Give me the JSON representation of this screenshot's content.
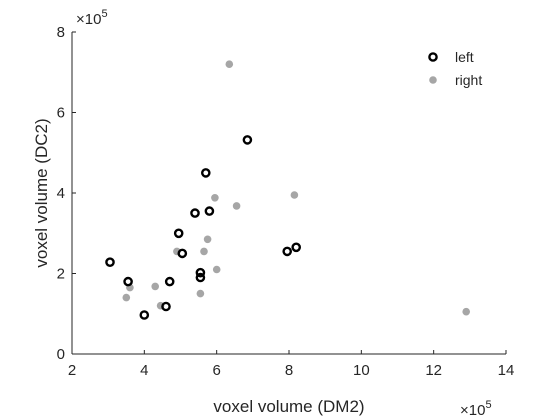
{
  "chart_data": {
    "type": "scatter",
    "xlabel": "voxel volume (DM2)",
    "ylabel": "voxel volume (DC2)",
    "x_exponent_label": "×10",
    "x_exponent": "5",
    "y_exponent_label": "×10",
    "y_exponent": "5",
    "xlim": [
      2,
      14
    ],
    "ylim": [
      0,
      8
    ],
    "xticks": [
      "2",
      "4",
      "6",
      "8",
      "10",
      "12",
      "14"
    ],
    "yticks": [
      "0",
      "2",
      "4",
      "6",
      "8"
    ],
    "xtick_values": [
      2,
      4,
      6,
      8,
      10,
      12,
      14
    ],
    "ytick_values": [
      0,
      2,
      4,
      6,
      8
    ],
    "scale_note": "values in units of 1e5",
    "grid": false,
    "legend_position": "top-right",
    "series": [
      {
        "name": "left",
        "marker": "open-circle",
        "color": "#000000",
        "points": [
          [
            3.05,
            2.28
          ],
          [
            3.55,
            1.8
          ],
          [
            4.0,
            0.97
          ],
          [
            4.6,
            1.18
          ],
          [
            4.7,
            1.8
          ],
          [
            4.95,
            3.0
          ],
          [
            5.05,
            2.5
          ],
          [
            5.4,
            3.5
          ],
          [
            5.55,
            1.9
          ],
          [
            5.55,
            2.02
          ],
          [
            5.7,
            4.5
          ],
          [
            5.8,
            3.55
          ],
          [
            6.85,
            5.32
          ],
          [
            7.95,
            2.55
          ],
          [
            8.2,
            2.65
          ]
        ]
      },
      {
        "name": "right",
        "marker": "filled-circle",
        "color": "#a6a6a6",
        "points": [
          [
            3.5,
            1.4
          ],
          [
            3.6,
            1.65
          ],
          [
            4.3,
            1.68
          ],
          [
            4.45,
            1.2
          ],
          [
            4.9,
            2.55
          ],
          [
            5.55,
            1.5
          ],
          [
            5.65,
            2.55
          ],
          [
            5.75,
            2.85
          ],
          [
            5.95,
            3.88
          ],
          [
            6.0,
            2.1
          ],
          [
            6.35,
            7.2
          ],
          [
            6.55,
            3.68
          ],
          [
            8.15,
            3.95
          ],
          [
            12.9,
            1.05
          ]
        ]
      }
    ]
  }
}
